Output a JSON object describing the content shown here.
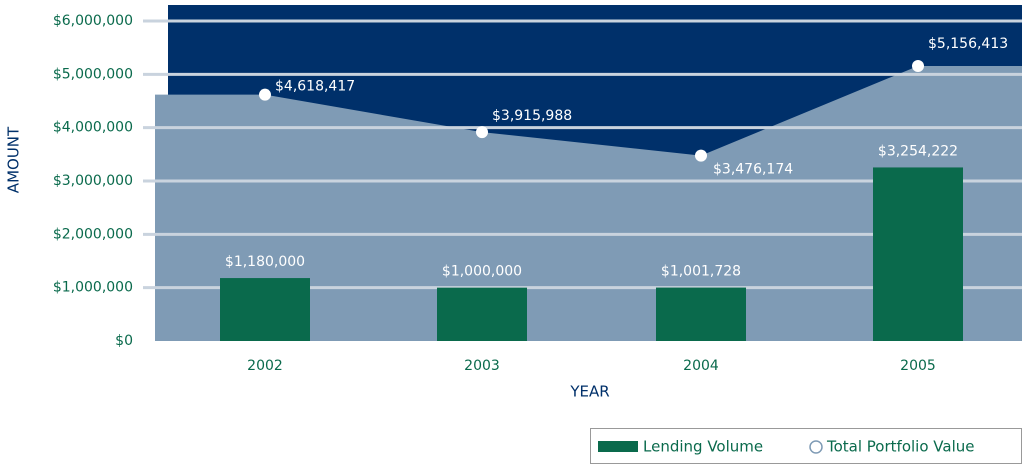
{
  "chart_data": {
    "type": "bar",
    "x_label": "YEAR",
    "y_label": "AMOUNT",
    "categories": [
      "2002",
      "2003",
      "2004",
      "2005"
    ],
    "series": [
      {
        "name": "Lending Volume",
        "type": "bar",
        "color": "#0a6a4c",
        "values": [
          1180000,
          1000000,
          1001728,
          3254222
        ],
        "value_labels": [
          "$1,180,000",
          "$1,000,000",
          "$1,001,728",
          "$3,254,222"
        ]
      },
      {
        "name": "Total Portfolio Value",
        "type": "area",
        "color": "#7f9bb5",
        "values": [
          4618417,
          3915988,
          3476174,
          5156413
        ],
        "value_labels": [
          "$4,618,417",
          "$3,915,988",
          "$3,476,174",
          "$5,156,413"
        ]
      }
    ],
    "ylim": [
      0,
      6000000
    ],
    "yticks": [
      {
        "value": 0,
        "label": "$0"
      },
      {
        "value": 1000000,
        "label": "$1,000,000"
      },
      {
        "value": 2000000,
        "label": "$2,000,000"
      },
      {
        "value": 3000000,
        "label": "$3,000,000"
      },
      {
        "value": 4000000,
        "label": "$4,000,000"
      },
      {
        "value": 5000000,
        "label": "$5,000,000"
      },
      {
        "value": 6000000,
        "label": "$6,000,000"
      }
    ],
    "grid": true
  }
}
